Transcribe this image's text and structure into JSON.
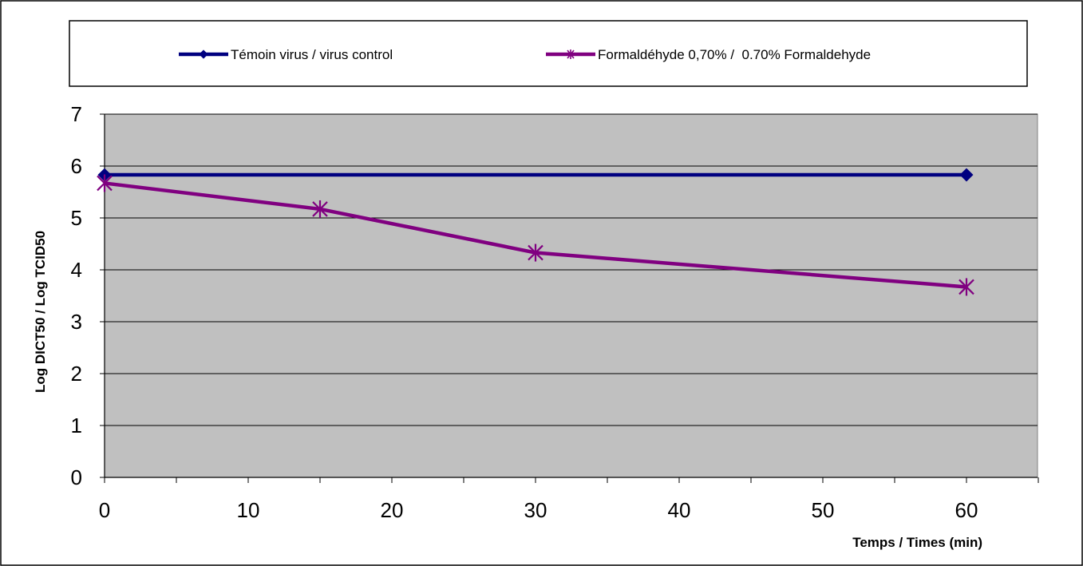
{
  "chart_data": {
    "type": "line",
    "title": "",
    "xlabel": "Temps / Times (min)",
    "ylabel": "Log DICT50 / Log TCID50",
    "xlim": [
      0,
      65
    ],
    "ylim": [
      0,
      7
    ],
    "x_ticks": [
      0,
      10,
      20,
      30,
      40,
      50,
      60
    ],
    "x_minor_step": 5,
    "y_ticks": [
      0,
      1,
      2,
      3,
      4,
      5,
      6,
      7
    ],
    "grid": "horizontal",
    "legend_position": "top",
    "plot_background": "#C0C0C0",
    "series": [
      {
        "name": "Témoin virus / virus control",
        "color": "#000080",
        "marker": "diamond",
        "x": [
          0,
          60
        ],
        "y": [
          5.83,
          5.83
        ]
      },
      {
        "name": "Formaldéhyde 0,70% /  0.70% Formaldehyde",
        "color": "#800080",
        "marker": "asterisk",
        "x": [
          0,
          15,
          30,
          60
        ],
        "y": [
          5.67,
          5.17,
          4.33,
          3.67
        ]
      }
    ]
  }
}
